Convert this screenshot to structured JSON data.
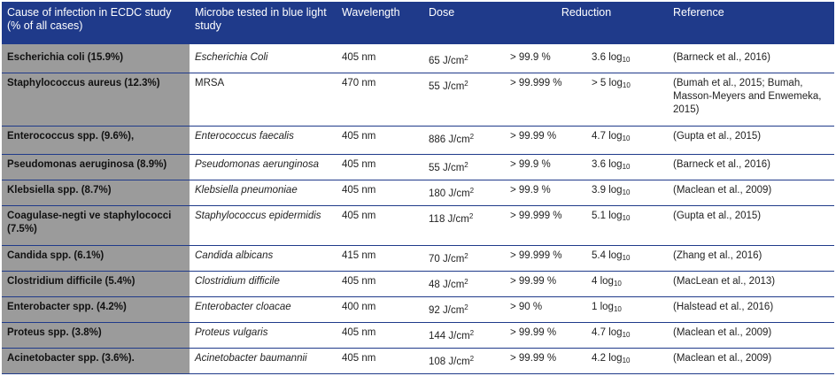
{
  "headers": {
    "cause": "Cause of infection in ECDC study (% of all cases)",
    "microbe": "Microbe tested in blue light study",
    "wavelength": "Wavelength",
    "dose": "Dose",
    "reduction": "Reduction",
    "reference": "Reference"
  },
  "dose_unit": "J/cm",
  "dose_exp": "2",
  "log_unit": "log",
  "log_base": "10",
  "rows": [
    {
      "cause": "Escherichia coli (15.9%)",
      "microbe": "Escherichia Coli",
      "wavelength": "405 nm",
      "dose": "65",
      "reduction": "> 99.9 %",
      "log": "3.6",
      "reference": "(Barneck et al., 2016)"
    },
    {
      "cause": "Staphylococcus aureus (12.3%)",
      "microbe": "MRSA",
      "wavelength": "470 nm",
      "dose": "55",
      "reduction": "> 99.999 %",
      "log": "> 5",
      "reference": "(Bumah et al., 2015; Bumah, Masson-Meyers and Enwemeka, 2015)"
    },
    {
      "cause": "Enterococcus spp. (9.6%),",
      "microbe": "Enterococcus faecalis",
      "wavelength": "405 nm",
      "dose": "886",
      "reduction": "> 99.99 %",
      "log": "4.7",
      "reference": "(Gupta et al., 2015)"
    },
    {
      "cause": "Pseudomonas aeruginosa (8.9%)",
      "microbe": "Pseudomonas aerunginosa",
      "wavelength": "405 nm",
      "dose": "55",
      "reduction": "> 99.9 %",
      "log": "3.6",
      "reference": "(Barneck et al., 2016)"
    },
    {
      "cause": "Klebsiella spp. (8.7%)",
      "microbe": "Klebsiella pneumoniae",
      "wavelength": "405 nm",
      "dose": "180",
      "reduction": "> 99.9 %",
      "log": "3.9",
      "reference": "(Maclean et al., 2009)"
    },
    {
      "cause": "Coagulase-negti ve staphylococci (7.5%)",
      "microbe": "Staphylococcus epidermidis",
      "wavelength": "405 nm",
      "dose": "118",
      "reduction": "> 99.999 %",
      "log": "5.1",
      "reference": "(Gupta et al., 2015)"
    },
    {
      "cause": "Candida spp. (6.1%)",
      "microbe": "Candida albicans",
      "wavelength": "415 nm",
      "dose": "70",
      "reduction": "> 99.999 %",
      "log": "5.4",
      "reference": "(Zhang et al., 2016)"
    },
    {
      "cause": "Clostridium difficile (5.4%)",
      "microbe": "Clostridium difficile",
      "wavelength": "405 nm",
      "dose": "48",
      "reduction": "> 99.99 %",
      "log": "4",
      "reference": "(MacLean et al., 2013)"
    },
    {
      "cause": "Enterobacter spp. (4.2%)",
      "microbe": "Enterobacter cloacae",
      "wavelength": "400 nm",
      "dose": "92",
      "reduction": "> 90 %",
      "log": "1",
      "reference": "(Halstead et al., 2016)"
    },
    {
      "cause": "Proteus spp. (3.8%)",
      "microbe": "Proteus vulgaris",
      "wavelength": "405 nm",
      "dose": "144",
      "reduction": "> 99.99 %",
      "log": "4.7",
      "reference": "(Maclean et al., 2009)"
    },
    {
      "cause": "Acinetobacter spp. (3.6%).",
      "microbe": "Acinetobacter baumannii",
      "wavelength": "405 nm",
      "dose": "108",
      "reduction": "> 99.99 %",
      "log": "4.2",
      "reference": "(Maclean et al., 2009)"
    }
  ]
}
